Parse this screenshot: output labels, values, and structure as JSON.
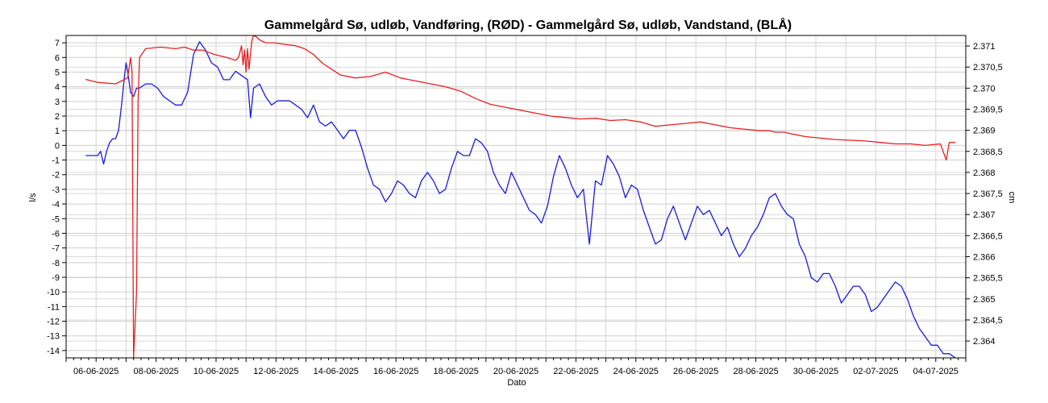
{
  "chart_data": {
    "type": "line",
    "title": "Gammelgård Sø, udløb, Vandføring, (RØD)  -  Gammelgård Sø, udløb, Vandstand, (BLÅ)",
    "xlabel": "Dato",
    "ylabel_left": "l/s",
    "ylabel_right": "cm",
    "y_left_ticks": [
      "7",
      "6",
      "5",
      "4",
      "3",
      "2",
      "1",
      "0",
      "-1",
      "-2",
      "-3",
      "-4",
      "-5",
      "-6",
      "-7",
      "-8",
      "-9",
      "-10",
      "-11",
      "-12",
      "-13",
      "-14"
    ],
    "y_right_ticks": [
      "2.371",
      "2.370,5",
      "2.370",
      "2.369,5",
      "2.369",
      "2.368,5",
      "2.368",
      "2.367,5",
      "2.367",
      "2.366,5",
      "2.366",
      "2.365,5",
      "2.365",
      "2.364,5",
      "2.364"
    ],
    "x_ticks": [
      "06-06-2025",
      "08-06-2025",
      "10-06-2025",
      "12-06-2025",
      "14-06-2025",
      "16-06-2025",
      "18-06-2025",
      "20-06-2025",
      "22-06-2025",
      "24-06-2025",
      "26-06-2025",
      "28-06-2025",
      "30-06-2025",
      "02-07-2025",
      "04-07-2025"
    ],
    "x_range": [
      "2025-06-05",
      "2025-07-05"
    ],
    "y_left_range": [
      -14.5,
      7.5
    ],
    "y_right_range": [
      2.3636,
      2.37125
    ],
    "grid": true,
    "series": [
      {
        "axis": "left",
        "color": "#e82020",
        "x": [
          0,
          0.4,
          1.0,
          1.3,
          1.4,
          1.5,
          1.55,
          1.6,
          1.7,
          1.75,
          1.8,
          2.0,
          2.5,
          3.0,
          3.3,
          3.6,
          3.9,
          4.3,
          4.7,
          5.0,
          5.1,
          5.2,
          5.25,
          5.3,
          5.35,
          5.4,
          5.45,
          5.5,
          5.55,
          5.6,
          5.7,
          5.75,
          5.8,
          6.0,
          6.3,
          6.6,
          7.0,
          7.3,
          7.6,
          7.9,
          8.2,
          8.5,
          9.0,
          9.5,
          10.0,
          10.5,
          11.0,
          11.5,
          12.0,
          12.5,
          13.0,
          13.5,
          14.0,
          14.5,
          15.0,
          15.5,
          16.0,
          16.5,
          17.0,
          17.5,
          18.0,
          18.5,
          19.0,
          19.5,
          20.0,
          20.5,
          21.0,
          21.5,
          22.0,
          22.5,
          22.8,
          23.0,
          23.3,
          23.5,
          24.0,
          24.5,
          25.0,
          25.5,
          26.0,
          26.5,
          27.0,
          27.5,
          28.0,
          28.5,
          28.7,
          28.8,
          28.9,
          29.0
        ],
        "y": [
          4.5,
          4.3,
          4.2,
          4.5,
          4.6,
          6.0,
          5.0,
          -14.5,
          -10.0,
          3.0,
          6.0,
          6.6,
          6.7,
          6.6,
          6.7,
          6.5,
          6.5,
          6.2,
          6.0,
          5.8,
          6.0,
          6.8,
          5.5,
          6.5,
          5.0,
          6.6,
          5.2,
          6.3,
          7.2,
          7.5,
          7.4,
          7.3,
          7.2,
          7.0,
          7.0,
          6.9,
          6.8,
          6.6,
          6.2,
          5.6,
          5.2,
          4.8,
          4.6,
          4.7,
          5.0,
          4.6,
          4.4,
          4.2,
          4.0,
          3.7,
          3.2,
          2.8,
          2.6,
          2.4,
          2.2,
          2.0,
          1.9,
          1.8,
          1.85,
          1.7,
          1.75,
          1.6,
          1.3,
          1.4,
          1.5,
          1.6,
          1.4,
          1.2,
          1.1,
          1.0,
          1.0,
          0.9,
          0.9,
          0.8,
          0.6,
          0.5,
          0.4,
          0.35,
          0.3,
          0.2,
          0.1,
          0.1,
          0.0,
          0.1,
          -1.0,
          0.2,
          0.2,
          0.2
        ]
      },
      {
        "axis": "right",
        "color": "#1a1ae0",
        "x": [
          0,
          0.2,
          0.4,
          0.5,
          0.6,
          0.7,
          0.8,
          0.9,
          1.0,
          1.1,
          1.2,
          1.3,
          1.35,
          1.4,
          1.5,
          1.6,
          1.7,
          1.8,
          2.0,
          2.2,
          2.4,
          2.6,
          2.8,
          3.0,
          3.2,
          3.4,
          3.6,
          3.8,
          4.0,
          4.2,
          4.4,
          4.6,
          4.8,
          5.0,
          5.2,
          5.4,
          5.5,
          5.6,
          5.8,
          6.0,
          6.2,
          6.4,
          6.6,
          6.8,
          7.0,
          7.2,
          7.4,
          7.6,
          7.8,
          8.0,
          8.2,
          8.4,
          8.6,
          8.8,
          9.0,
          9.2,
          9.4,
          9.6,
          9.8,
          10.0,
          10.2,
          10.4,
          10.6,
          10.8,
          11.0,
          11.2,
          11.4,
          11.6,
          11.8,
          12.0,
          12.2,
          12.4,
          12.6,
          12.8,
          13.0,
          13.2,
          13.4,
          13.6,
          13.8,
          14.0,
          14.2,
          14.4,
          14.6,
          14.8,
          15.0,
          15.2,
          15.4,
          15.6,
          15.8,
          16.0,
          16.2,
          16.4,
          16.6,
          16.8,
          17.0,
          17.2,
          17.4,
          17.6,
          17.8,
          18.0,
          18.2,
          18.4,
          18.6,
          18.8,
          19.0,
          19.2,
          19.4,
          19.6,
          19.8,
          20.0,
          20.2,
          20.4,
          20.6,
          20.8,
          21.0,
          21.2,
          21.4,
          21.6,
          21.8,
          22.0,
          22.2,
          22.4,
          22.6,
          22.8,
          23.0,
          23.2,
          23.4,
          23.6,
          23.8,
          24.0,
          24.2,
          24.4,
          24.6,
          24.8,
          25.0,
          25.2,
          25.4,
          25.6,
          25.8,
          26.0,
          26.2,
          26.4,
          26.6,
          26.8,
          27.0,
          27.2,
          27.4,
          27.6,
          27.8,
          28.0,
          28.2,
          28.4,
          28.6,
          28.8,
          29.0
        ],
        "y": [
          2.3684,
          2.3684,
          2.3684,
          2.3685,
          2.3682,
          2.3685,
          2.3687,
          2.3688,
          2.3688,
          2.369,
          2.3696,
          2.3703,
          2.3706,
          2.3704,
          2.3699,
          2.3698,
          2.37,
          2.37,
          2.3701,
          2.3701,
          2.37,
          2.3698,
          2.3697,
          2.3696,
          2.3696,
          2.3699,
          2.3708,
          2.3711,
          2.3709,
          2.3706,
          2.3705,
          2.3702,
          2.3702,
          2.3704,
          2.3703,
          2.3702,
          2.3693,
          2.37,
          2.3701,
          2.3698,
          2.3696,
          2.3697,
          2.3697,
          2.3697,
          2.3696,
          2.3695,
          2.3693,
          2.3696,
          2.3692,
          2.3691,
          2.3692,
          2.369,
          2.3688,
          2.369,
          2.369,
          2.3686,
          2.3681,
          2.3677,
          2.3676,
          2.3673,
          2.3675,
          2.3678,
          2.3677,
          2.3675,
          2.3674,
          2.3678,
          2.368,
          2.3678,
          2.3675,
          2.3676,
          2.3681,
          2.3685,
          2.3684,
          2.3684,
          2.3688,
          2.3687,
          2.3685,
          2.368,
          2.3677,
          2.3675,
          2.368,
          2.3677,
          2.3674,
          2.3671,
          2.367,
          2.3668,
          2.3672,
          2.3679,
          2.3684,
          2.3681,
          2.3677,
          2.3674,
          2.3676,
          2.3663,
          2.3678,
          2.3677,
          2.3684,
          2.3682,
          2.3679,
          2.3674,
          2.3677,
          2.3676,
          2.3671,
          2.3667,
          2.3663,
          2.3664,
          2.3669,
          2.3672,
          2.3668,
          2.3664,
          2.3668,
          2.3672,
          2.367,
          2.3671,
          2.3668,
          2.3665,
          2.3667,
          2.3663,
          2.366,
          2.3662,
          2.3665,
          2.3667,
          2.367,
          2.3674,
          2.3675,
          2.3672,
          2.367,
          2.3669,
          2.3663,
          2.366,
          2.3655,
          2.3654,
          2.3656,
          2.3656,
          2.3653,
          2.3649,
          2.3651,
          2.3653,
          2.3653,
          2.3651,
          2.3647,
          2.3648,
          2.365,
          2.3652,
          2.3654,
          2.3653,
          2.365,
          2.3646,
          2.3643,
          2.3641,
          2.3639,
          2.3639,
          2.3637,
          2.3637,
          2.3636
        ]
      }
    ]
  }
}
